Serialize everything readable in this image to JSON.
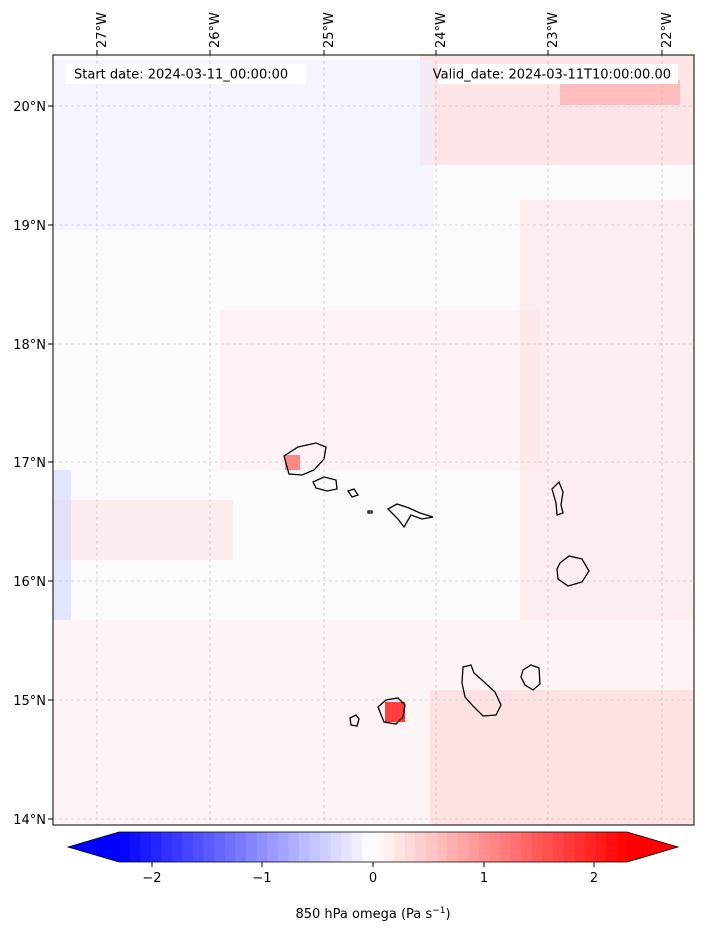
{
  "map": {
    "header": {
      "start_date": "Start date: 2024-03-11_00:00:00",
      "valid_date": "Valid_date: 2024-03-11T10:00:00.00"
    },
    "longitude_ticks": [
      "27°W",
      "26°W",
      "25°W",
      "24°W",
      "23°W",
      "22°W"
    ],
    "latitude_ticks": [
      "20°N",
      "19°N",
      "18°N",
      "17°N",
      "16°N",
      "15°N",
      "14°N"
    ],
    "colorbar": {
      "ticks": [
        "−2",
        "−1",
        "0",
        "1",
        "2"
      ],
      "label": "850 hPa omega (Pa s",
      "label_superscript": "−1",
      "label_suffix": ")",
      "colors": {
        "negative": "#0000ff",
        "zero": "#ffffff",
        "positive": "#ff0000"
      },
      "levels": 48,
      "extend": "both"
    },
    "style": {
      "gridline_color": "#bbbbbb",
      "coastline_color": "#000000",
      "field_positive": "#ff0000",
      "field_negative": "#0000ff"
    }
  }
}
